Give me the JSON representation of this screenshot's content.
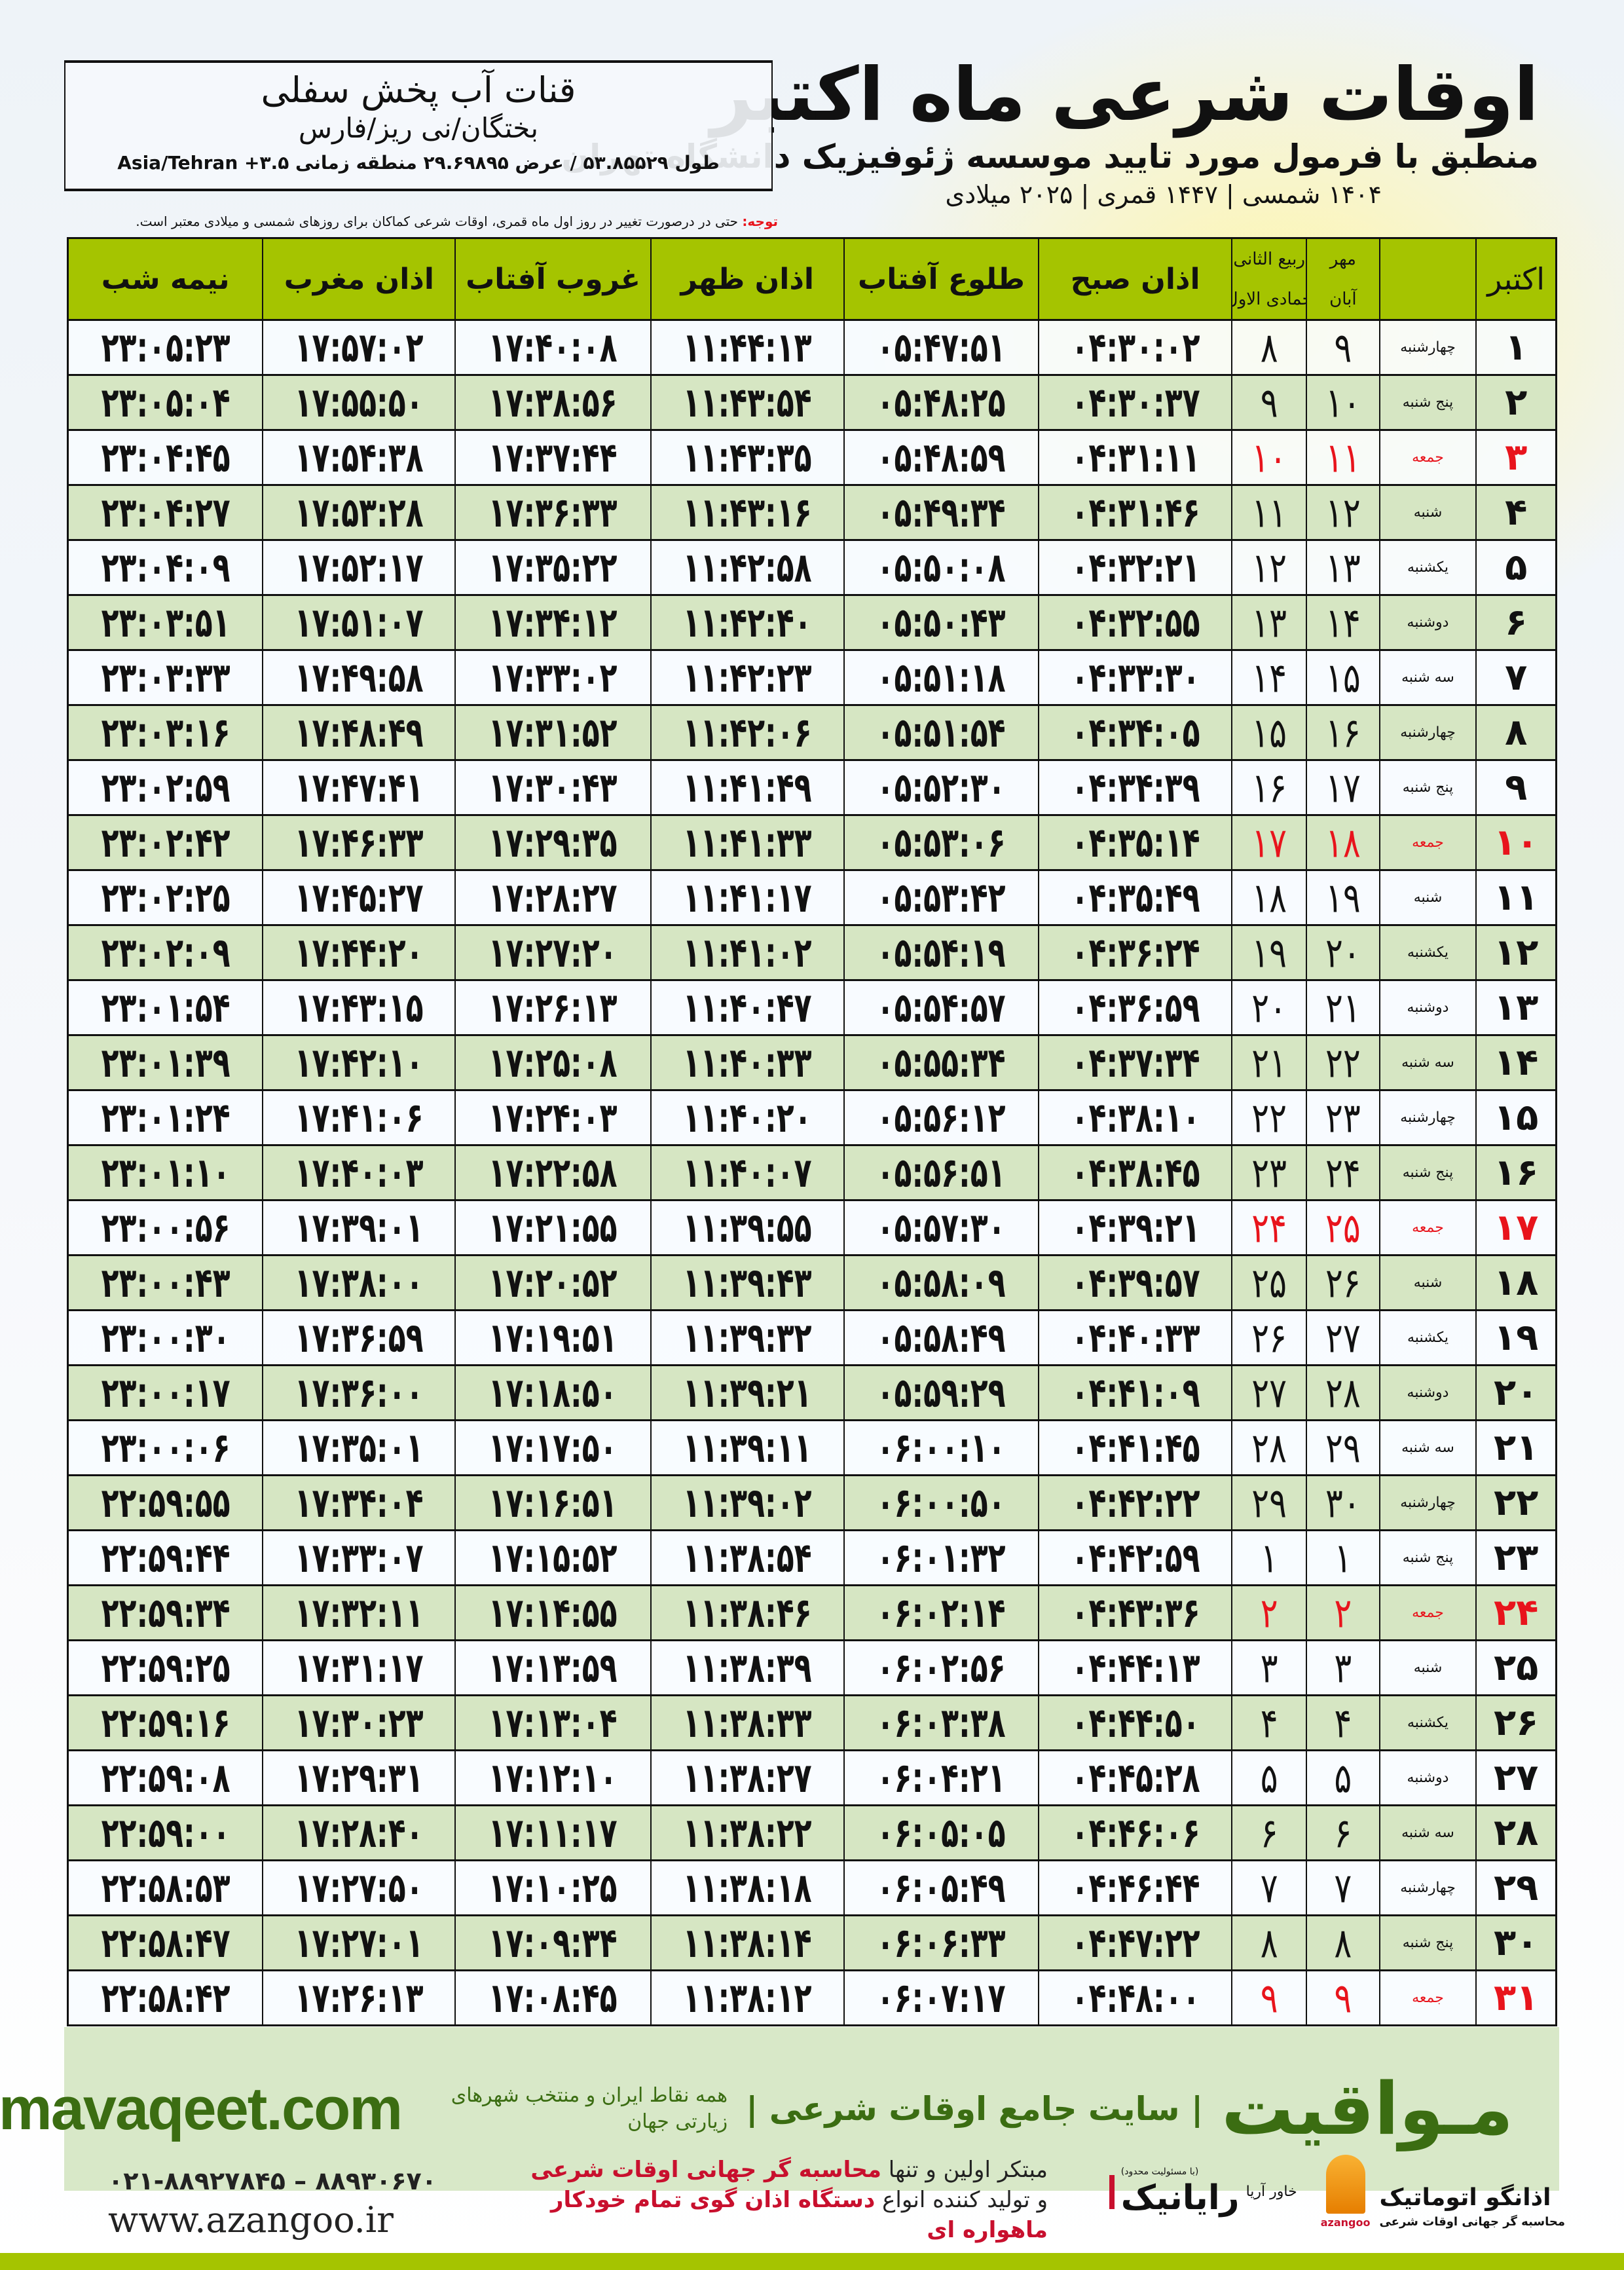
{
  "header": {
    "title": "اوقات شرعی ماه اکتبر",
    "subtitle": "منطبق با فرمول مورد تایید موسسه ژئوفیزیک دانشگاه تهران",
    "dates": "۱۴۰۴ شمسی | ۱۴۴۷ قمری | ۲۰۲۵ میلادی"
  },
  "location": {
    "name": "قنات آب پخش سفلی",
    "region": "بختگان/نی ریز/فارس",
    "coords": "طول ۵۳.۸۵۵۲۹ / عرض ۲۹.۶۹۸۹۵ منطقه زمانی ۳.۵+ Asia/Tehran"
  },
  "note": {
    "label": "توجه:",
    "text": " حتی در درصورت تغییر در روز اول ماه قمری، اوقات شرعی کماکان برای روزهای شمسی و میلادی معتبر است."
  },
  "table": {
    "headers": {
      "month": "اکتبر",
      "shamsi_top": "مهر",
      "shamsi_bottom": "آبان",
      "hijri_top": "ربیع الثانی",
      "hijri_bottom": "جمادی الاول",
      "fajr": "اذان صبح",
      "sunrise": "طلوع آفتاب",
      "dhuhr": "اذان ظهر",
      "sunset": "غروب آفتاب",
      "maghrib": "اذان مغرب",
      "midnight": "نیمه شب"
    },
    "holiday_color": "#e8141c",
    "rows": [
      {
        "day": "۱",
        "weekday": "چهارشنبه",
        "shamsi": "۹",
        "hijri": "۸",
        "fajr": "۰۴:۳۰:۰۲",
        "sunrise": "۰۵:۴۷:۵۱",
        "dhuhr": "۱۱:۴۴:۱۳",
        "sunset": "۱۷:۴۰:۰۸",
        "maghrib": "۱۷:۵۷:۰۲",
        "midnight": "۲۳:۰۵:۲۳",
        "holiday": false
      },
      {
        "day": "۲",
        "weekday": "پنج شنبه",
        "shamsi": "۱۰",
        "hijri": "۹",
        "fajr": "۰۴:۳۰:۳۷",
        "sunrise": "۰۵:۴۸:۲۵",
        "dhuhr": "۱۱:۴۳:۵۴",
        "sunset": "۱۷:۳۸:۵۶",
        "maghrib": "۱۷:۵۵:۵۰",
        "midnight": "۲۳:۰۵:۰۴",
        "holiday": false
      },
      {
        "day": "۳",
        "weekday": "جمعه",
        "shamsi": "۱۱",
        "hijri": "۱۰",
        "fajr": "۰۴:۳۱:۱۱",
        "sunrise": "۰۵:۴۸:۵۹",
        "dhuhr": "۱۱:۴۳:۳۵",
        "sunset": "۱۷:۳۷:۴۴",
        "maghrib": "۱۷:۵۴:۳۸",
        "midnight": "۲۳:۰۴:۴۵",
        "holiday": true
      },
      {
        "day": "۴",
        "weekday": "شنبه",
        "shamsi": "۱۲",
        "hijri": "۱۱",
        "fajr": "۰۴:۳۱:۴۶",
        "sunrise": "۰۵:۴۹:۳۴",
        "dhuhr": "۱۱:۴۳:۱۶",
        "sunset": "۱۷:۳۶:۳۳",
        "maghrib": "۱۷:۵۳:۲۸",
        "midnight": "۲۳:۰۴:۲۷",
        "holiday": false
      },
      {
        "day": "۵",
        "weekday": "یکشنبه",
        "shamsi": "۱۳",
        "hijri": "۱۲",
        "fajr": "۰۴:۳۲:۲۱",
        "sunrise": "۰۵:۵۰:۰۸",
        "dhuhr": "۱۱:۴۲:۵۸",
        "sunset": "۱۷:۳۵:۲۲",
        "maghrib": "۱۷:۵۲:۱۷",
        "midnight": "۲۳:۰۴:۰۹",
        "holiday": false
      },
      {
        "day": "۶",
        "weekday": "دوشنبه",
        "shamsi": "۱۴",
        "hijri": "۱۳",
        "fajr": "۰۴:۳۲:۵۵",
        "sunrise": "۰۵:۵۰:۴۳",
        "dhuhr": "۱۱:۴۲:۴۰",
        "sunset": "۱۷:۳۴:۱۲",
        "maghrib": "۱۷:۵۱:۰۷",
        "midnight": "۲۳:۰۳:۵۱",
        "holiday": false
      },
      {
        "day": "۷",
        "weekday": "سه شنبه",
        "shamsi": "۱۵",
        "hijri": "۱۴",
        "fajr": "۰۴:۳۳:۳۰",
        "sunrise": "۰۵:۵۱:۱۸",
        "dhuhr": "۱۱:۴۲:۲۳",
        "sunset": "۱۷:۳۳:۰۲",
        "maghrib": "۱۷:۴۹:۵۸",
        "midnight": "۲۳:۰۳:۳۳",
        "holiday": false
      },
      {
        "day": "۸",
        "weekday": "چهارشنبه",
        "shamsi": "۱۶",
        "hijri": "۱۵",
        "fajr": "۰۴:۳۴:۰۵",
        "sunrise": "۰۵:۵۱:۵۴",
        "dhuhr": "۱۱:۴۲:۰۶",
        "sunset": "۱۷:۳۱:۵۲",
        "maghrib": "۱۷:۴۸:۴۹",
        "midnight": "۲۳:۰۳:۱۶",
        "holiday": false
      },
      {
        "day": "۹",
        "weekday": "پنج شنبه",
        "shamsi": "۱۷",
        "hijri": "۱۶",
        "fajr": "۰۴:۳۴:۳۹",
        "sunrise": "۰۵:۵۲:۳۰",
        "dhuhr": "۱۱:۴۱:۴۹",
        "sunset": "۱۷:۳۰:۴۳",
        "maghrib": "۱۷:۴۷:۴۱",
        "midnight": "۲۳:۰۲:۵۹",
        "holiday": false
      },
      {
        "day": "۱۰",
        "weekday": "جمعه",
        "shamsi": "۱۸",
        "hijri": "۱۷",
        "fajr": "۰۴:۳۵:۱۴",
        "sunrise": "۰۵:۵۳:۰۶",
        "dhuhr": "۱۱:۴۱:۳۳",
        "sunset": "۱۷:۲۹:۳۵",
        "maghrib": "۱۷:۴۶:۳۳",
        "midnight": "۲۳:۰۲:۴۲",
        "holiday": true
      },
      {
        "day": "۱۱",
        "weekday": "شنبه",
        "shamsi": "۱۹",
        "hijri": "۱۸",
        "fajr": "۰۴:۳۵:۴۹",
        "sunrise": "۰۵:۵۳:۴۲",
        "dhuhr": "۱۱:۴۱:۱۷",
        "sunset": "۱۷:۲۸:۲۷",
        "maghrib": "۱۷:۴۵:۲۷",
        "midnight": "۲۳:۰۲:۲۵",
        "holiday": false
      },
      {
        "day": "۱۲",
        "weekday": "یکشنبه",
        "shamsi": "۲۰",
        "hijri": "۱۹",
        "fajr": "۰۴:۳۶:۲۴",
        "sunrise": "۰۵:۵۴:۱۹",
        "dhuhr": "۱۱:۴۱:۰۲",
        "sunset": "۱۷:۲۷:۲۰",
        "maghrib": "۱۷:۴۴:۲۰",
        "midnight": "۲۳:۰۲:۰۹",
        "holiday": false
      },
      {
        "day": "۱۳",
        "weekday": "دوشنبه",
        "shamsi": "۲۱",
        "hijri": "۲۰",
        "fajr": "۰۴:۳۶:۵۹",
        "sunrise": "۰۵:۵۴:۵۷",
        "dhuhr": "۱۱:۴۰:۴۷",
        "sunset": "۱۷:۲۶:۱۳",
        "maghrib": "۱۷:۴۳:۱۵",
        "midnight": "۲۳:۰۱:۵۴",
        "holiday": false
      },
      {
        "day": "۱۴",
        "weekday": "سه شنبه",
        "shamsi": "۲۲",
        "hijri": "۲۱",
        "fajr": "۰۴:۳۷:۳۴",
        "sunrise": "۰۵:۵۵:۳۴",
        "dhuhr": "۱۱:۴۰:۳۳",
        "sunset": "۱۷:۲۵:۰۸",
        "maghrib": "۱۷:۴۲:۱۰",
        "midnight": "۲۳:۰۱:۳۹",
        "holiday": false
      },
      {
        "day": "۱۵",
        "weekday": "چهارشنبه",
        "shamsi": "۲۳",
        "hijri": "۲۲",
        "fajr": "۰۴:۳۸:۱۰",
        "sunrise": "۰۵:۵۶:۱۲",
        "dhuhr": "۱۱:۴۰:۲۰",
        "sunset": "۱۷:۲۴:۰۳",
        "maghrib": "۱۷:۴۱:۰۶",
        "midnight": "۲۳:۰۱:۲۴",
        "holiday": false
      },
      {
        "day": "۱۶",
        "weekday": "پنج شنبه",
        "shamsi": "۲۴",
        "hijri": "۲۳",
        "fajr": "۰۴:۳۸:۴۵",
        "sunrise": "۰۵:۵۶:۵۱",
        "dhuhr": "۱۱:۴۰:۰۷",
        "sunset": "۱۷:۲۲:۵۸",
        "maghrib": "۱۷:۴۰:۰۳",
        "midnight": "۲۳:۰۱:۱۰",
        "holiday": false
      },
      {
        "day": "۱۷",
        "weekday": "جمعه",
        "shamsi": "۲۵",
        "hijri": "۲۴",
        "fajr": "۰۴:۳۹:۲۱",
        "sunrise": "۰۵:۵۷:۳۰",
        "dhuhr": "۱۱:۳۹:۵۵",
        "sunset": "۱۷:۲۱:۵۵",
        "maghrib": "۱۷:۳۹:۰۱",
        "midnight": "۲۳:۰۰:۵۶",
        "holiday": true
      },
      {
        "day": "۱۸",
        "weekday": "شنبه",
        "shamsi": "۲۶",
        "hijri": "۲۵",
        "fajr": "۰۴:۳۹:۵۷",
        "sunrise": "۰۵:۵۸:۰۹",
        "dhuhr": "۱۱:۳۹:۴۳",
        "sunset": "۱۷:۲۰:۵۲",
        "maghrib": "۱۷:۳۸:۰۰",
        "midnight": "۲۳:۰۰:۴۳",
        "holiday": false
      },
      {
        "day": "۱۹",
        "weekday": "یکشنبه",
        "shamsi": "۲۷",
        "hijri": "۲۶",
        "fajr": "۰۴:۴۰:۳۳",
        "sunrise": "۰۵:۵۸:۴۹",
        "dhuhr": "۱۱:۳۹:۳۲",
        "sunset": "۱۷:۱۹:۵۱",
        "maghrib": "۱۷:۳۶:۵۹",
        "midnight": "۲۳:۰۰:۳۰",
        "holiday": false
      },
      {
        "day": "۲۰",
        "weekday": "دوشنبه",
        "shamsi": "۲۸",
        "hijri": "۲۷",
        "fajr": "۰۴:۴۱:۰۹",
        "sunrise": "۰۵:۵۹:۲۹",
        "dhuhr": "۱۱:۳۹:۲۱",
        "sunset": "۱۷:۱۸:۵۰",
        "maghrib": "۱۷:۳۶:۰۰",
        "midnight": "۲۳:۰۰:۱۷",
        "holiday": false
      },
      {
        "day": "۲۱",
        "weekday": "سه شنبه",
        "shamsi": "۲۹",
        "hijri": "۲۸",
        "fajr": "۰۴:۴۱:۴۵",
        "sunrise": "۰۶:۰۰:۱۰",
        "dhuhr": "۱۱:۳۹:۱۱",
        "sunset": "۱۷:۱۷:۵۰",
        "maghrib": "۱۷:۳۵:۰۱",
        "midnight": "۲۳:۰۰:۰۶",
        "holiday": false
      },
      {
        "day": "۲۲",
        "weekday": "چهارشنبه",
        "shamsi": "۳۰",
        "hijri": "۲۹",
        "fajr": "۰۴:۴۲:۲۲",
        "sunrise": "۰۶:۰۰:۵۰",
        "dhuhr": "۱۱:۳۹:۰۲",
        "sunset": "۱۷:۱۶:۵۱",
        "maghrib": "۱۷:۳۴:۰۴",
        "midnight": "۲۲:۵۹:۵۵",
        "holiday": false
      },
      {
        "day": "۲۳",
        "weekday": "پنج شنبه",
        "shamsi": "۱",
        "hijri": "۱",
        "fajr": "۰۴:۴۲:۵۹",
        "sunrise": "۰۶:۰۱:۳۲",
        "dhuhr": "۱۱:۳۸:۵۴",
        "sunset": "۱۷:۱۵:۵۲",
        "maghrib": "۱۷:۳۳:۰۷",
        "midnight": "۲۲:۵۹:۴۴",
        "holiday": false
      },
      {
        "day": "۲۴",
        "weekday": "جمعه",
        "shamsi": "۲",
        "hijri": "۲",
        "fajr": "۰۴:۴۳:۳۶",
        "sunrise": "۰۶:۰۲:۱۴",
        "dhuhr": "۱۱:۳۸:۴۶",
        "sunset": "۱۷:۱۴:۵۵",
        "maghrib": "۱۷:۳۲:۱۱",
        "midnight": "۲۲:۵۹:۳۴",
        "holiday": true
      },
      {
        "day": "۲۵",
        "weekday": "شنبه",
        "shamsi": "۳",
        "hijri": "۳",
        "fajr": "۰۴:۴۴:۱۳",
        "sunrise": "۰۶:۰۲:۵۶",
        "dhuhr": "۱۱:۳۸:۳۹",
        "sunset": "۱۷:۱۳:۵۹",
        "maghrib": "۱۷:۳۱:۱۷",
        "midnight": "۲۲:۵۹:۲۵",
        "holiday": false
      },
      {
        "day": "۲۶",
        "weekday": "یکشنبه",
        "shamsi": "۴",
        "hijri": "۴",
        "fajr": "۰۴:۴۴:۵۰",
        "sunrise": "۰۶:۰۳:۳۸",
        "dhuhr": "۱۱:۳۸:۳۳",
        "sunset": "۱۷:۱۳:۰۴",
        "maghrib": "۱۷:۳۰:۲۳",
        "midnight": "۲۲:۵۹:۱۶",
        "holiday": false
      },
      {
        "day": "۲۷",
        "weekday": "دوشنبه",
        "shamsi": "۵",
        "hijri": "۵",
        "fajr": "۰۴:۴۵:۲۸",
        "sunrise": "۰۶:۰۴:۲۱",
        "dhuhr": "۱۱:۳۸:۲۷",
        "sunset": "۱۷:۱۲:۱۰",
        "maghrib": "۱۷:۲۹:۳۱",
        "midnight": "۲۲:۵۹:۰۸",
        "holiday": false
      },
      {
        "day": "۲۸",
        "weekday": "سه شنبه",
        "shamsi": "۶",
        "hijri": "۶",
        "fajr": "۰۴:۴۶:۰۶",
        "sunrise": "۰۶:۰۵:۰۵",
        "dhuhr": "۱۱:۳۸:۲۲",
        "sunset": "۱۷:۱۱:۱۷",
        "maghrib": "۱۷:۲۸:۴۰",
        "midnight": "۲۲:۵۹:۰۰",
        "holiday": false
      },
      {
        "day": "۲۹",
        "weekday": "چهارشنبه",
        "shamsi": "۷",
        "hijri": "۷",
        "fajr": "۰۴:۴۶:۴۴",
        "sunrise": "۰۶:۰۵:۴۹",
        "dhuhr": "۱۱:۳۸:۱۸",
        "sunset": "۱۷:۱۰:۲۵",
        "maghrib": "۱۷:۲۷:۵۰",
        "midnight": "۲۲:۵۸:۵۳",
        "holiday": false
      },
      {
        "day": "۳۰",
        "weekday": "پنج شنبه",
        "shamsi": "۸",
        "hijri": "۸",
        "fajr": "۰۴:۴۷:۲۲",
        "sunrise": "۰۶:۰۶:۳۳",
        "dhuhr": "۱۱:۳۸:۱۴",
        "sunset": "۱۷:۰۹:۳۴",
        "maghrib": "۱۷:۲۷:۰۱",
        "midnight": "۲۲:۵۸:۴۷",
        "holiday": false
      },
      {
        "day": "۳۱",
        "weekday": "جمعه",
        "shamsi": "۹",
        "hijri": "۹",
        "fajr": "۰۴:۴۸:۰۰",
        "sunrise": "۰۶:۰۷:۱۷",
        "dhuhr": "۱۱:۳۸:۱۲",
        "sunset": "۱۷:۰۸:۴۵",
        "maghrib": "۱۷:۲۶:۱۳",
        "midnight": "۲۲:۵۸:۴۲",
        "holiday": true
      }
    ]
  },
  "banner": {
    "brand": "مـواقیت",
    "tagline": "| سایت جامع اوقات شرعی |",
    "tagsub": "همه نقاط ایران و منتخب شهرهای زیارتی جهان",
    "site": "mavaqeet.com",
    "color": "#3b6d12"
  },
  "footer": {
    "phone": "۰۲۱-۸۸۹۲۷۸۴۵ – ۸۸۹۳۰۶۷۰",
    "web": "www.azangoo.ir",
    "promo_line1_a": "مبتکر اولین و تنها ",
    "promo_line1_b": "محاسبه گر جهانی اوقات شرعی",
    "promo_line2_a": "و تولید کننده انواع ",
    "promo_line2_b": "دستگاه اذان گوی تمام خودکار ماهواره ای",
    "rayanik": "رایانیک",
    "rayanik_sub": "خاور آریا",
    "rayanik_note": "(با مسئولیت محدود)",
    "azangoo": "اذانگو اتوماتیک",
    "azangoo_sub": "محاسبه گر جهانی اوقات شرعی",
    "azangoo_latin": "azangoo"
  }
}
